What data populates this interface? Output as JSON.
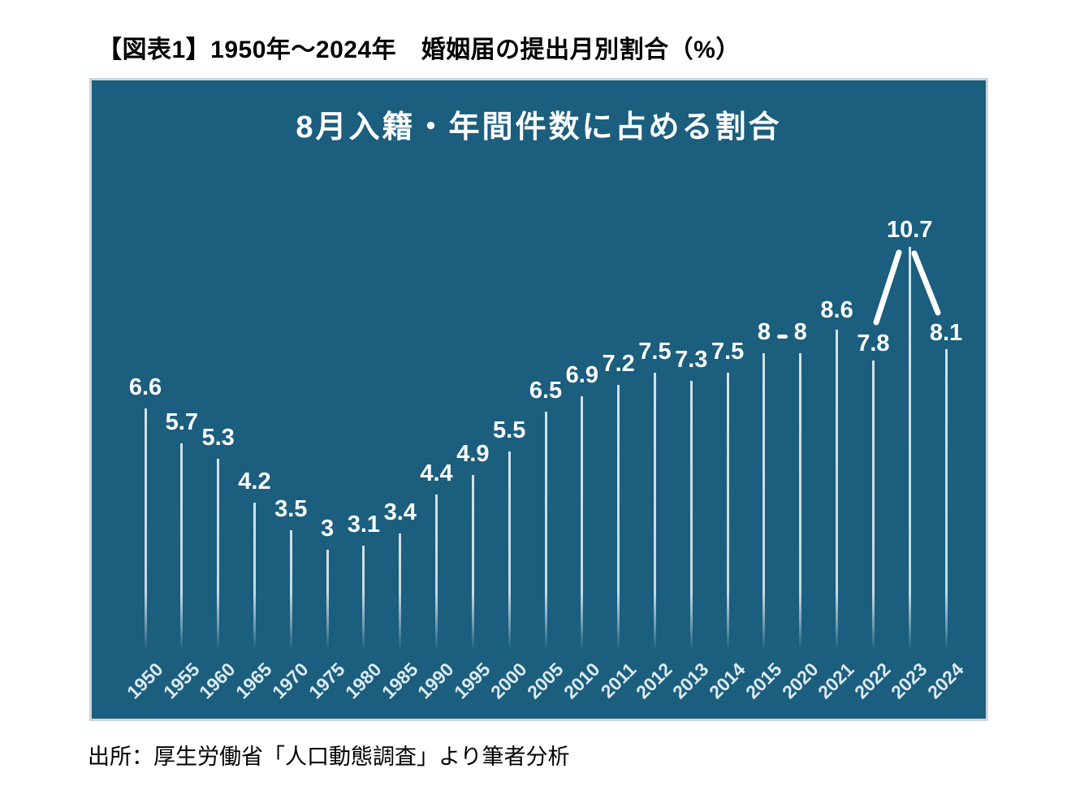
{
  "page": {
    "title": "【図表1】1950年～2024年　婚姻届の提出月別割合（%）",
    "source_note": "出所：厚生労働省「人口動態調査」より筆者分析"
  },
  "chart_data": {
    "type": "bar",
    "title": "8月入籍・年間件数に占める割合",
    "unit": "%",
    "categories": [
      "1950",
      "1955",
      "1960",
      "1965",
      "1970",
      "1975",
      "1980",
      "1985",
      "1990",
      "1995",
      "2000",
      "2005",
      "2010",
      "2011",
      "2012",
      "2013",
      "2014",
      "2015",
      "2020",
      "2021",
      "2022",
      "2023",
      "2024"
    ],
    "values": [
      6.6,
      5.7,
      5.3,
      4.2,
      3.5,
      3,
      3.1,
      3.4,
      4.4,
      4.9,
      5.5,
      6.5,
      6.9,
      7.2,
      7.5,
      7.3,
      7.5,
      8,
      8,
      8.6,
      7.8,
      10.7,
      8.1
    ],
    "value_labels": [
      "6.6",
      "5.7",
      "5.3",
      "4.2",
      "3.5",
      "3",
      "3.1",
      "3.4",
      "4.4",
      "4.9",
      "5.5",
      "6.5",
      "6.9",
      "7.2",
      "7.5",
      "7.3",
      "7.5",
      "8",
      "8",
      "8.6",
      "7.8",
      "10.7",
      "8.1"
    ],
    "ylim": [
      0,
      15
    ],
    "grid": false,
    "legend": false,
    "axes": {
      "y_axis_visible": false,
      "x_labels_rotated_degrees": 45
    },
    "annotations": [
      {
        "type": "emphasis_rays",
        "category": "2023",
        "description": "two thick white diagonal lines flanking the 10.7 peak bar, below its label"
      },
      {
        "type": "dash",
        "between_categories": [
          "2015",
          "2020"
        ],
        "description": "short horizontal white dash drawn between the two 8 value labels"
      }
    ],
    "colors": {
      "plot_background": "#1B5E7E",
      "plot_border": "#CBD6DB",
      "bar": "#DFEAF0",
      "value_label": "#FFFFFF",
      "axis_label": "#DCEAF2",
      "title": "#FFFFFF",
      "page_text": "#000000"
    }
  }
}
